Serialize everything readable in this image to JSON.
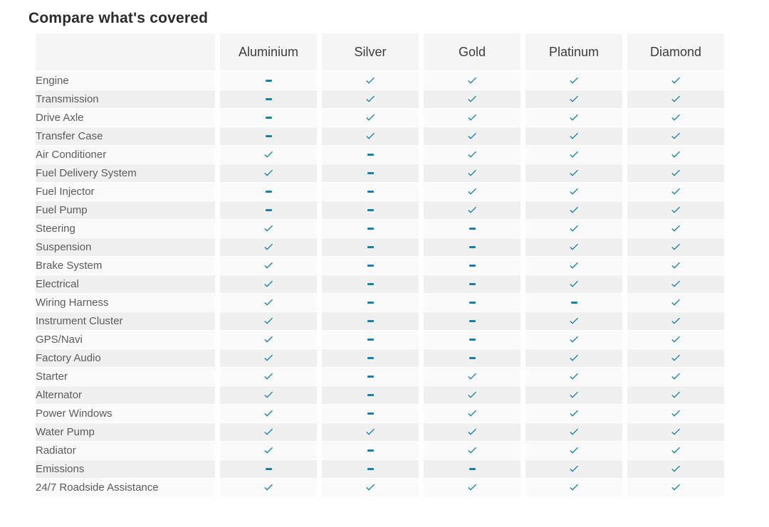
{
  "title": "Compare what's covered",
  "colors": {
    "accent": "#1282a8",
    "row_light": "#fafafa",
    "row_dark": "#f0f0f0",
    "header_bg": "#f5f5f5"
  },
  "marks": {
    "covered": "check-icon",
    "not_covered": "dash-icon"
  },
  "chart_data": {
    "type": "table",
    "title": "Compare what's covered",
    "columns": [
      "Aluminium",
      "Silver",
      "Gold",
      "Platinum",
      "Diamond"
    ],
    "legend": "true = covered (teal check), false = not covered (teal dash)",
    "rows": [
      {
        "label": "Engine",
        "covered": [
          false,
          true,
          true,
          true,
          true
        ]
      },
      {
        "label": "Transmission",
        "covered": [
          false,
          true,
          true,
          true,
          true
        ]
      },
      {
        "label": "Drive Axle",
        "covered": [
          false,
          true,
          true,
          true,
          true
        ]
      },
      {
        "label": "Transfer Case",
        "covered": [
          false,
          true,
          true,
          true,
          true
        ]
      },
      {
        "label": "Air Conditioner",
        "covered": [
          true,
          false,
          true,
          true,
          true
        ]
      },
      {
        "label": "Fuel Delivery System",
        "covered": [
          true,
          false,
          true,
          true,
          true
        ]
      },
      {
        "label": "Fuel Injector",
        "covered": [
          false,
          false,
          true,
          true,
          true
        ]
      },
      {
        "label": "Fuel Pump",
        "covered": [
          false,
          false,
          true,
          true,
          true
        ]
      },
      {
        "label": "Steering",
        "covered": [
          true,
          false,
          false,
          true,
          true
        ]
      },
      {
        "label": "Suspension",
        "covered": [
          true,
          false,
          false,
          true,
          true
        ]
      },
      {
        "label": "Brake System",
        "covered": [
          true,
          false,
          false,
          true,
          true
        ]
      },
      {
        "label": "Electrical",
        "covered": [
          true,
          false,
          false,
          true,
          true
        ]
      },
      {
        "label": "Wiring Harness",
        "covered": [
          true,
          false,
          false,
          false,
          true
        ]
      },
      {
        "label": "Instrument Cluster",
        "covered": [
          true,
          false,
          false,
          true,
          true
        ]
      },
      {
        "label": "GPS/Navi",
        "covered": [
          true,
          false,
          false,
          true,
          true
        ]
      },
      {
        "label": "Factory Audio",
        "covered": [
          true,
          false,
          false,
          true,
          true
        ]
      },
      {
        "label": "Starter",
        "covered": [
          true,
          false,
          true,
          true,
          true
        ]
      },
      {
        "label": "Alternator",
        "covered": [
          true,
          false,
          true,
          true,
          true
        ]
      },
      {
        "label": "Power Windows",
        "covered": [
          true,
          false,
          true,
          true,
          true
        ]
      },
      {
        "label": "Water Pump",
        "covered": [
          true,
          true,
          true,
          true,
          true
        ]
      },
      {
        "label": "Radiator",
        "covered": [
          true,
          false,
          true,
          true,
          true
        ]
      },
      {
        "label": "Emissions",
        "covered": [
          false,
          false,
          false,
          true,
          true
        ]
      },
      {
        "label": "24/7 Roadside Assistance",
        "covered": [
          true,
          true,
          true,
          true,
          true
        ]
      }
    ]
  }
}
